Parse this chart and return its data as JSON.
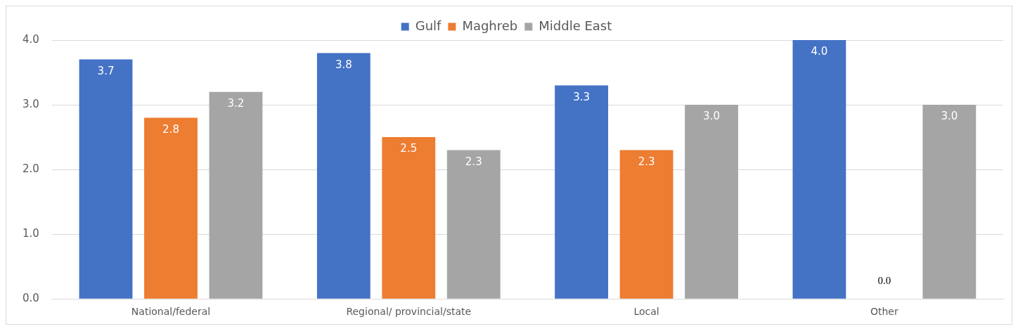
{
  "chart_data": {
    "type": "bar",
    "categories": [
      "National/federal",
      "Regional/ provincial/state",
      "Local",
      "Other"
    ],
    "series": [
      {
        "name": "Gulf",
        "color": "#4472c4",
        "values": [
          3.7,
          3.8,
          3.3,
          4.0
        ],
        "value_labels": [
          "3.7",
          "3.8",
          "3.3",
          "4.0"
        ]
      },
      {
        "name": "Maghreb",
        "color": "#ed7d31",
        "values": [
          2.8,
          2.5,
          2.3,
          0.0
        ],
        "value_labels": [
          "2.8",
          "2.5",
          "2.3",
          "0.0"
        ]
      },
      {
        "name": "Middle East",
        "color": "#a5a5a5",
        "values": [
          3.2,
          2.3,
          3.0,
          3.0
        ],
        "value_labels": [
          "3.2",
          "2.3",
          "3.0",
          "3.0"
        ]
      }
    ],
    "ylim": [
      0,
      4
    ],
    "yticks": [
      {
        "value": 0,
        "label": "0.0"
      },
      {
        "value": 1,
        "label": "1.0"
      },
      {
        "value": 2,
        "label": "2.0"
      },
      {
        "value": 3,
        "label": "3.0"
      },
      {
        "value": 4,
        "label": "4.0"
      }
    ],
    "grid": "y",
    "legend": "top"
  }
}
